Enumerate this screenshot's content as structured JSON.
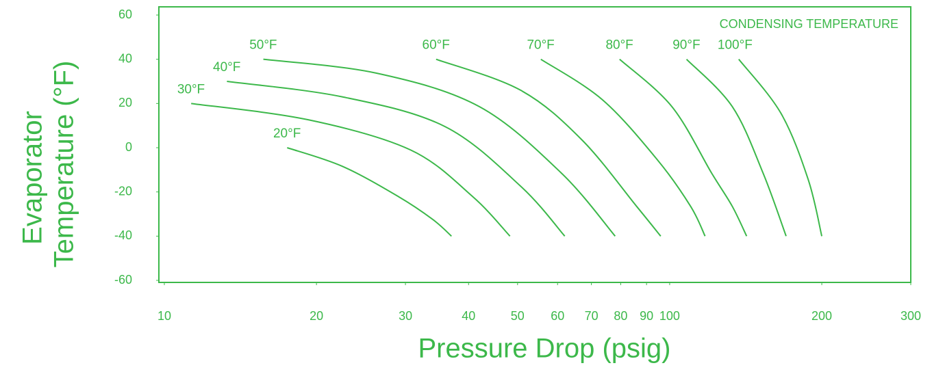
{
  "chart_data": {
    "type": "line",
    "xlabel": "Pressure Drop (psig)",
    "ylabel": [
      "Evaporator",
      "Temperature (°F)"
    ],
    "annotation": "CONDENSING TEMPERATURE",
    "log_x": true,
    "grid": false,
    "xlim": [
      10,
      300
    ],
    "ylim": [
      -60,
      60
    ],
    "xticks": [
      10,
      20,
      30,
      40,
      50,
      60,
      70,
      80,
      90,
      100,
      200,
      300
    ],
    "yticks": [
      60,
      40,
      20,
      0,
      -20,
      -40,
      -60
    ],
    "series": [
      {
        "name": "20°F",
        "color": "#3cb84a",
        "x": [
          17.5,
          22.5,
          29,
          34,
          37
        ],
        "values": [
          0,
          -8.4,
          -22,
          -32.5,
          -40
        ]
      },
      {
        "name": "30°F",
        "color": "#3cb84a",
        "x": [
          11.3,
          19.3,
          30.7,
          40.7,
          48.3
        ],
        "values": [
          20,
          12.6,
          -1,
          -22,
          -40
        ]
      },
      {
        "name": "40°F",
        "color": "#3cb84a",
        "x": [
          13.3,
          22.5,
          35.9,
          50.7,
          62
        ],
        "values": [
          30,
          23,
          9.6,
          -17.4,
          -40
        ]
      },
      {
        "name": "50°F",
        "color": "#3cb84a",
        "x": [
          15.7,
          26.3,
          42,
          61,
          78
        ],
        "values": [
          40,
          33.7,
          18.6,
          -11.4,
          -40
        ]
      },
      {
        "name": "60°F",
        "color": "#3cb84a",
        "x": [
          34.5,
          50.7,
          67,
          86,
          96
        ],
        "values": [
          40,
          26,
          3.6,
          -26.5,
          -40
        ]
      },
      {
        "name": "70°F",
        "color": "#3cb84a",
        "x": [
          55.6,
          73.6,
          94.5,
          110,
          117.5
        ],
        "values": [
          40,
          21.7,
          -5.4,
          -26.5,
          -40
        ]
      },
      {
        "name": "80°F",
        "color": "#3cb84a",
        "x": [
          79.6,
          101,
          121,
          133,
          142
        ],
        "values": [
          40,
          18.6,
          -11.4,
          -26.5,
          -40
        ]
      },
      {
        "name": "90°F",
        "color": "#3cb84a",
        "x": [
          108,
          133,
          153,
          170
        ],
        "values": [
          40,
          18.6,
          -11.4,
          -40
        ]
      },
      {
        "name": "100°F",
        "color": "#3cb84a",
        "x": [
          137,
          166,
          188,
          200
        ],
        "values": [
          40,
          15.6,
          -14.4,
          -40
        ]
      }
    ]
  }
}
